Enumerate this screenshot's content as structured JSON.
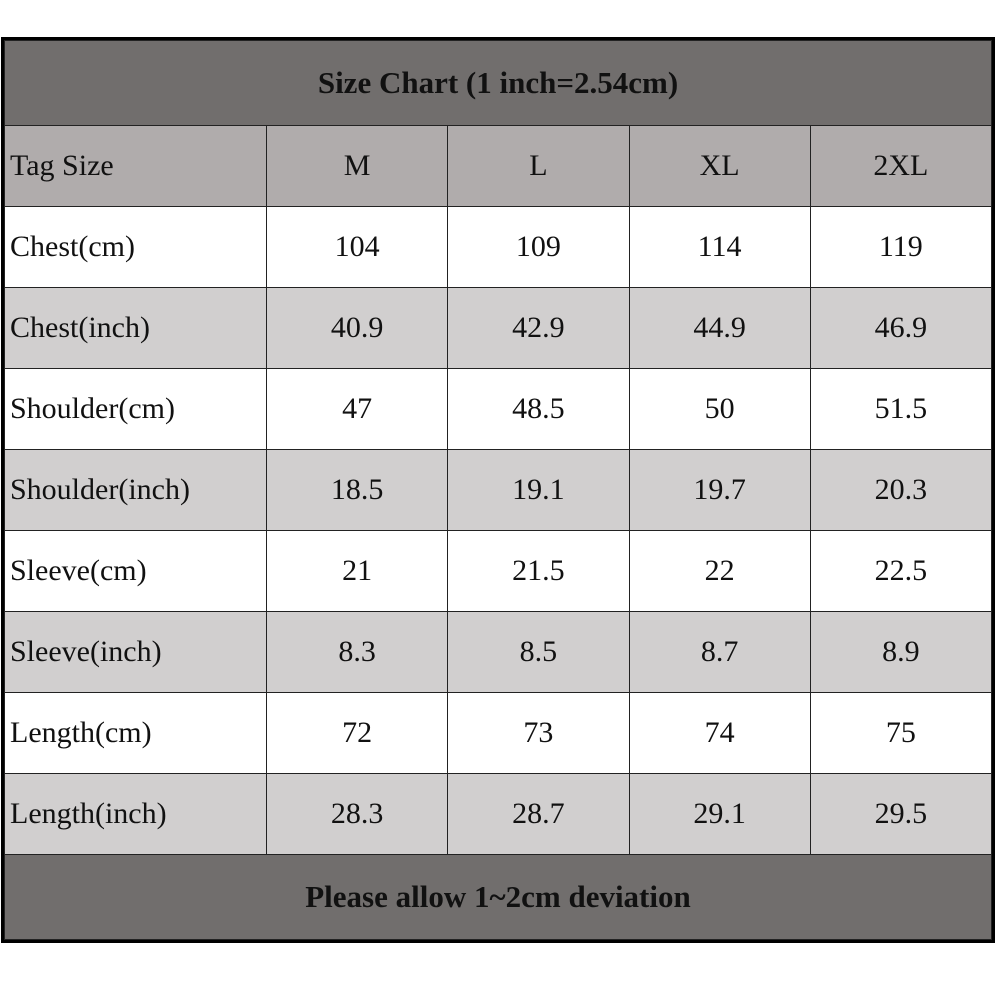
{
  "title": "Size Chart (1 inch=2.54cm)",
  "header": [
    "Tag Size",
    "M",
    "L",
    "XL",
    "2XL"
  ],
  "rows": [
    {
      "label": "Chest(cm)",
      "values": [
        "104",
        "109",
        "114",
        "119"
      ]
    },
    {
      "label": "Chest(inch)",
      "values": [
        "40.9",
        "42.9",
        "44.9",
        "46.9"
      ]
    },
    {
      "label": "Shoulder(cm)",
      "values": [
        "47",
        "48.5",
        "50",
        "51.5"
      ]
    },
    {
      "label": "Shoulder(inch)",
      "values": [
        "18.5",
        "19.1",
        "19.7",
        "20.3"
      ]
    },
    {
      "label": "Sleeve(cm)",
      "values": [
        "21",
        "21.5",
        "22",
        "22.5"
      ]
    },
    {
      "label": "Sleeve(inch)",
      "values": [
        "8.3",
        "8.5",
        "8.7",
        "8.9"
      ]
    },
    {
      "label": "Length(cm)",
      "values": [
        "72",
        "73",
        "74",
        "75"
      ]
    },
    {
      "label": "Length(inch)",
      "values": [
        "28.3",
        "28.7",
        "29.1",
        "29.5"
      ]
    }
  ],
  "footer": "Please allow 1~2cm deviation",
  "colors": {
    "title_bg": "#716e6d",
    "header_bg": "#b0acac",
    "alt_row_bg": "#d1cfcf"
  }
}
